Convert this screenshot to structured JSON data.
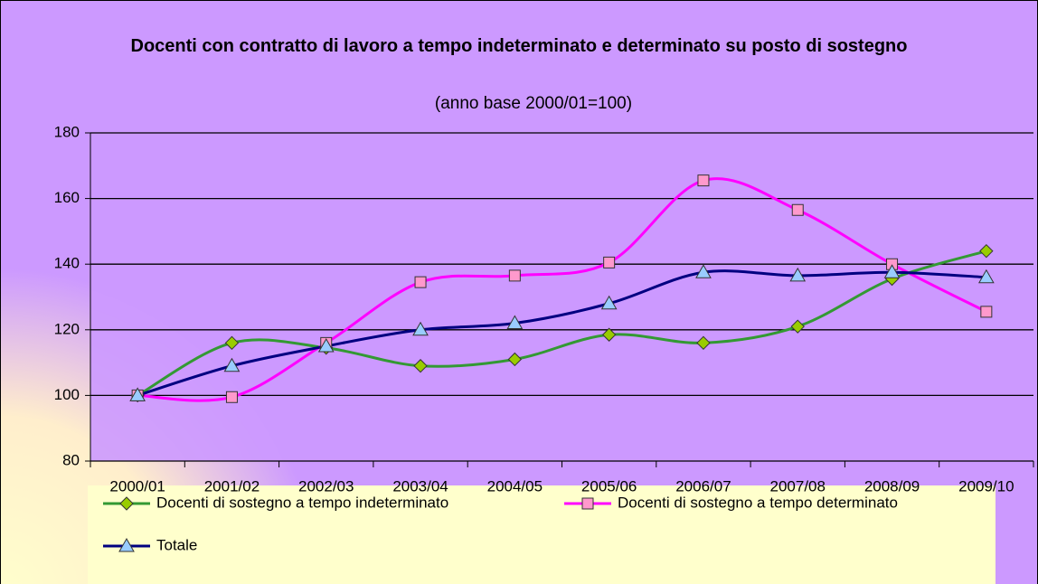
{
  "chart_data": {
    "type": "line",
    "title": "Docenti con contratto di lavoro a tempo indeterminato e determinato su posto di sostegno",
    "subtitle": "(anno base 2000/01=100)",
    "categories": [
      "2000/01",
      "2001/02",
      "2002/03",
      "2003/04",
      "2004/05",
      "2005/06",
      "2006/07",
      "2007/08",
      "2008/09",
      "2009/10"
    ],
    "series": [
      {
        "name": "Docenti di sostegno a tempo indeterminato",
        "color": "#339933",
        "marker_color": "#99cc00",
        "marker": "diamond",
        "values": [
          100,
          116,
          114.5,
          109,
          111,
          118.5,
          116,
          121,
          135.5,
          144
        ]
      },
      {
        "name": "Docenti di sostegno a tempo determinato",
        "color": "#ff00ff",
        "marker_color": "#ff99cc",
        "marker": "square",
        "values": [
          100,
          99.5,
          116,
          134.5,
          136.5,
          140.5,
          165.5,
          156.5,
          140,
          125.5
        ]
      },
      {
        "name": "Totale",
        "color": "#000080",
        "marker_color": "#99ccff",
        "marker": "triangle",
        "values": [
          100,
          109,
          115,
          120,
          122,
          128,
          137.5,
          136.5,
          137.5,
          136
        ]
      }
    ],
    "ylim": [
      80,
      180
    ],
    "yticks": [
      80,
      100,
      120,
      140,
      160,
      180
    ],
    "grid": true,
    "smooth": true,
    "legend": "bottom"
  }
}
